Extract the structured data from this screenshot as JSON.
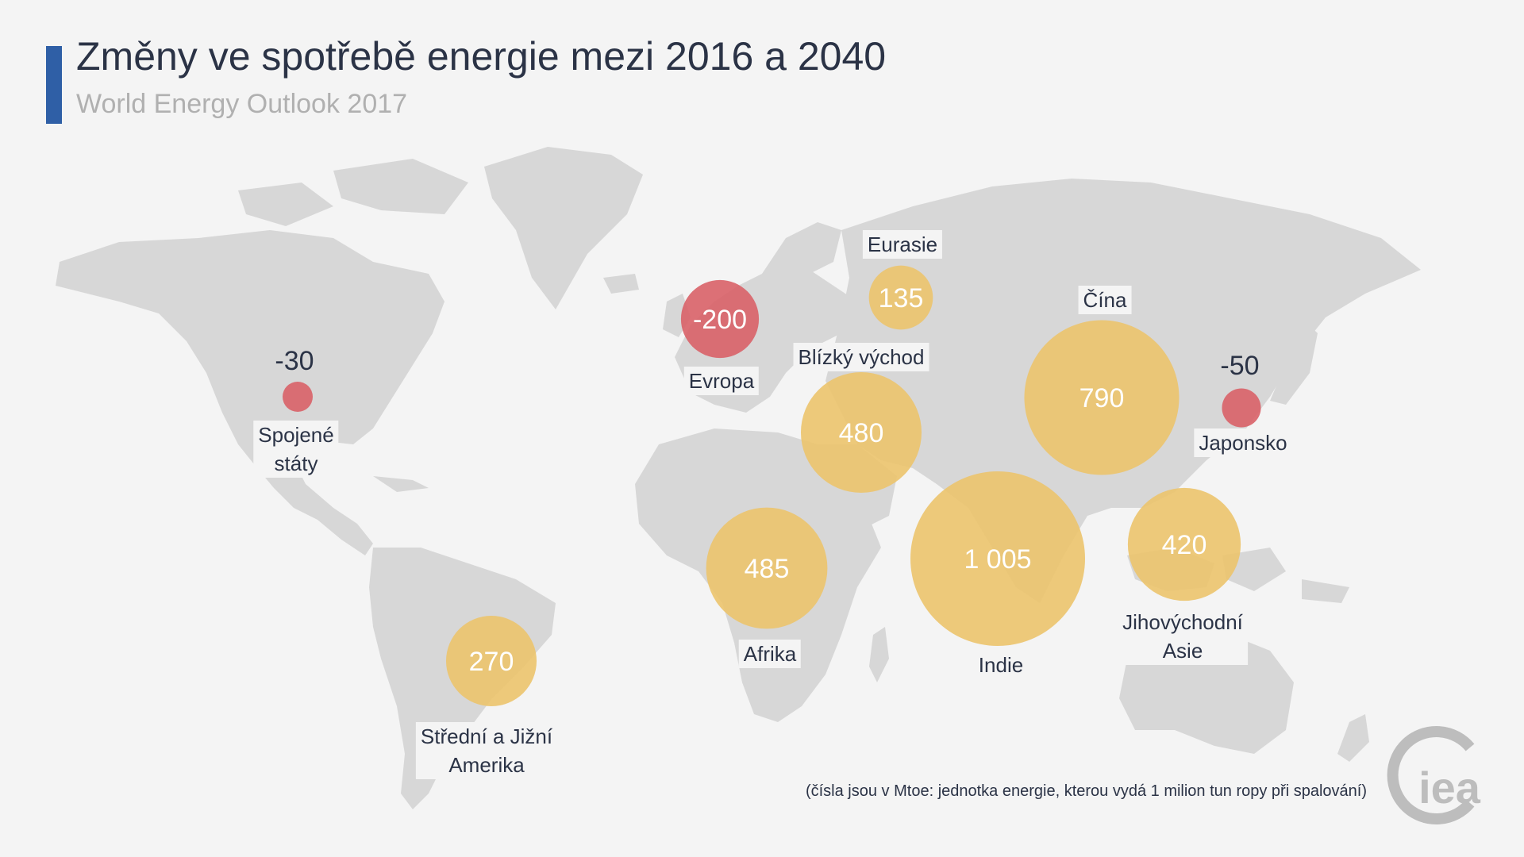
{
  "header": {
    "title": "Změny ve spotřebě energie mezi 2016 a 2040",
    "subtitle": "World Energy Outlook 2017"
  },
  "colors": {
    "increase": "#ecc46f",
    "decrease": "#d9646a",
    "land": "#d7d7d7",
    "background": "#f4f4f4",
    "accent": "#2f5fa6"
  },
  "regions": [
    {
      "id": "usa",
      "value": "-30",
      "label": "Spojené\nstáty",
      "change": -30
    },
    {
      "id": "latam",
      "value": "270",
      "label": "Střední a Jižní\nAmerika",
      "change": 270
    },
    {
      "id": "europe",
      "value": "-200",
      "label": "Evropa",
      "change": -200
    },
    {
      "id": "eurasia",
      "value": "135",
      "label": "Eurasie",
      "change": 135
    },
    {
      "id": "mideast",
      "value": "480",
      "label": "Blízký východ",
      "change": 480
    },
    {
      "id": "africa",
      "value": "485",
      "label": "Afrika",
      "change": 485
    },
    {
      "id": "india",
      "value": "1 005",
      "label": "Indie",
      "change": 1005
    },
    {
      "id": "china",
      "value": "790",
      "label": "Čína",
      "change": 790
    },
    {
      "id": "sea",
      "value": "420",
      "label": "Jihovýchodní\nAsie",
      "change": 420
    },
    {
      "id": "japan",
      "value": "-50",
      "label": "Japonsko",
      "change": -50
    }
  ],
  "footnote": "(čísla jsou v Mtoe: jednotka energie, kterou vydá 1 milion tun ropy při spalování)",
  "logo": {
    "text": "iea",
    "icon": "iea-logo-icon"
  }
}
